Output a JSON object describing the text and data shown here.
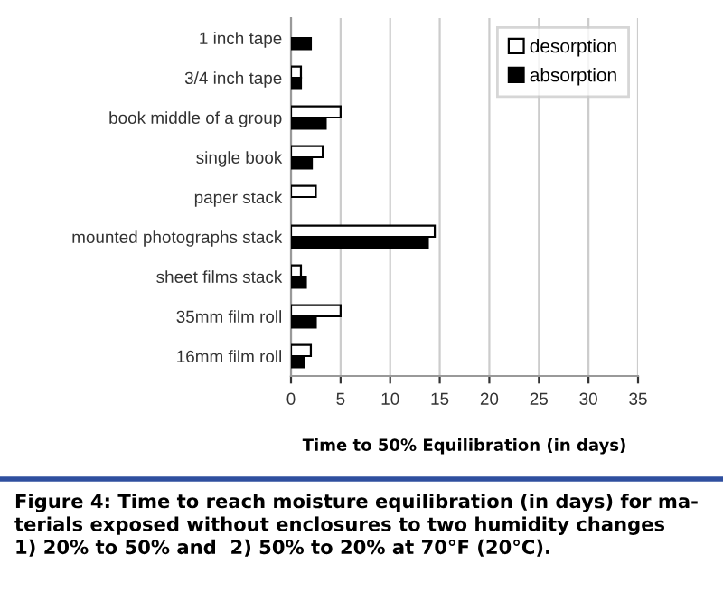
{
  "chart_data": {
    "type": "bar",
    "orientation": "horizontal",
    "categories": [
      "1 inch tape",
      "3/4 inch tape",
      "book middle of a group",
      "single book",
      "paper stack",
      "mounted photographs stack",
      "sheet films stack",
      "35mm film roll",
      "16mm film roll"
    ],
    "series": [
      {
        "name": "desorption",
        "color": "#ffffff",
        "values": [
          null,
          1.0,
          5.0,
          3.2,
          2.5,
          14.5,
          1.0,
          5.0,
          2.0
        ]
      },
      {
        "name": "absorption",
        "color": "#000000",
        "values": [
          2.0,
          1.0,
          3.5,
          2.1,
          null,
          13.8,
          1.5,
          2.5,
          1.3
        ]
      }
    ],
    "xlim": [
      0,
      35
    ],
    "xticks": [
      0,
      5,
      10,
      15,
      20,
      25,
      30,
      35
    ],
    "xlabel": "Time to 50% Equilibration (in days)",
    "grid": "x",
    "legend": "top right",
    "annotations": [
      "Figure 4: Time to reach moisture equilibration (in days) for ma-\nterials exposed without enclosures to two humidity changes\n1) 20% to 50% and  2) 50% to 20% at 70°F (20°C)."
    ]
  }
}
